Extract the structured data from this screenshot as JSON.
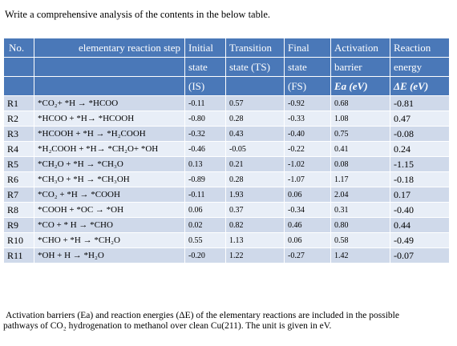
{
  "prompt": "Write a comprehensive analysis of the contents in the below table.",
  "table": {
    "headers": [
      [
        "No.",
        "",
        ""
      ],
      [
        "elementary reaction step",
        "",
        ""
      ],
      [
        "Initial",
        "state",
        "(IS)"
      ],
      [
        "Transition",
        "state (TS)",
        ""
      ],
      [
        "Final",
        "state",
        "(FS)"
      ],
      [
        "Activation",
        "barrier",
        "Ea (eV)"
      ],
      [
        "Reaction",
        "energy",
        "ΔE (eV)"
      ]
    ],
    "rows": [
      {
        "id": "R1",
        "step": "*CO₂+ *H → *HCOO",
        "is": "-0.11",
        "ts": "0.57",
        "fs": "-0.92",
        "ea": "0.68",
        "de": "-0.81"
      },
      {
        "id": "R2",
        "step": "*HCOO + *H→ *HCOOH",
        "is": "-0.80",
        "ts": "0.28",
        "fs": "-0.33",
        "ea": "1.08",
        "de": "0.47"
      },
      {
        "id": "R3",
        "step": "*HCOOH + *H → *H₂COOH",
        "is": "-0.32",
        "ts": "0.43",
        "fs": "-0.40",
        "ea": "0.75",
        "de": "-0.08"
      },
      {
        "id": "R4",
        "step": "*H₂COOH + *H→ *CH₂O+ *OH",
        "is": "-0.46",
        "ts": "-0.05",
        "fs": "-0.22",
        "ea": "0.41",
        "de": "0.24"
      },
      {
        "id": "R5",
        "step": "*CH₂O + *H → *CH₃O",
        "is": "0.13",
        "ts": "0.21",
        "fs": "-1.02",
        "ea": "0.08",
        "de": "-1.15"
      },
      {
        "id": "R6",
        "step": "*CH₃O + *H → *CH₃OH",
        "is": "-0.89",
        "ts": "0.28",
        "fs": "-1.07",
        "ea": "1.17",
        "de": "-0.18"
      },
      {
        "id": "R7",
        "step": "*CO₂ + *H → *COOH",
        "is": "-0.11",
        "ts": "1.93",
        "fs": "0.06",
        "ea": "2.04",
        "de": "0.17"
      },
      {
        "id": "R8",
        "step": "*COOH + *OC → *OH",
        "is": "0.06",
        "ts": "0.37",
        "fs": "-0.34",
        "ea": "0.31",
        "de": "-0.40"
      },
      {
        "id": "R9",
        "step": "*CO + * H → *CHO",
        "is": "0.02",
        "ts": "0.82",
        "fs": "0.46",
        "ea": "0.80",
        "de": "0.44"
      },
      {
        "id": "R10",
        "step": "*CHO + *H → *CH₂O",
        "is": "0.55",
        "ts": "1.13",
        "fs": "0.06",
        "ea": "0.58",
        "de": "-0.49"
      },
      {
        "id": "R11",
        "step": "*OH + H → *H₂O",
        "is": "-0.20",
        "ts": "1.22",
        "fs": "-0.27",
        "ea": "1.42",
        "de": "-0.07"
      }
    ]
  },
  "caption": {
    "line1": "Activation barriers (Ea) and reaction energies (ΔE) of the elementary reactions are included in the possible",
    "line2": "pathways of CO₂ hydrogenation to methanol over clean Cu(211). The unit is given in eV."
  }
}
